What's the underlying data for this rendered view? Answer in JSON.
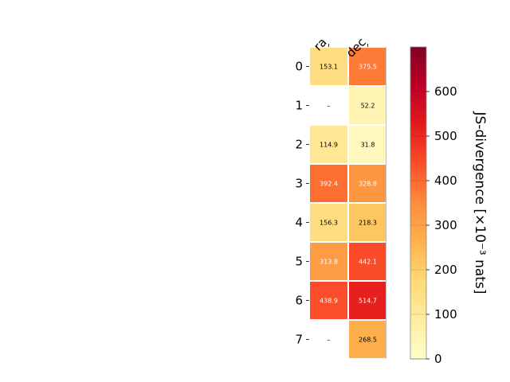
{
  "chart_data": {
    "type": "heatmap",
    "title": "",
    "columns": [
      "ra",
      "dec"
    ],
    "rows": [
      "0",
      "1",
      "2",
      "3",
      "4",
      "5",
      "6",
      "7"
    ],
    "values": [
      [
        153.1,
        375.5
      ],
      [
        null,
        52.2
      ],
      [
        114.9,
        31.8
      ],
      [
        392.4,
        328.8
      ],
      [
        156.3,
        218.3
      ],
      [
        313.8,
        442.1
      ],
      [
        438.9,
        514.7
      ],
      [
        null,
        268.5
      ]
    ],
    "cell_labels": [
      [
        "153.1",
        "375.5"
      ],
      [
        "–",
        "52.2"
      ],
      [
        "114.9",
        "31.8"
      ],
      [
        "392.4",
        "328.8"
      ],
      [
        "156.3",
        "218.3"
      ],
      [
        "313.8",
        "442.1"
      ],
      [
        "438.9",
        "514.7"
      ],
      [
        "–",
        "268.5"
      ]
    ],
    "colorbar": {
      "label": "JS-divergence [×10⁻³ nats]",
      "range": [
        0,
        700
      ],
      "ticks": [
        "0",
        "100",
        "200",
        "300",
        "400",
        "500",
        "600"
      ],
      "colormap": "YlOrRd",
      "colors": [
        "#ffffcc",
        "#ffeda0",
        "#fed976",
        "#feb24c",
        "#fd8d3c",
        "#fc4e2a",
        "#e31a1c",
        "#bd0026",
        "#800026"
      ]
    },
    "missing_color": "#ffffff"
  }
}
